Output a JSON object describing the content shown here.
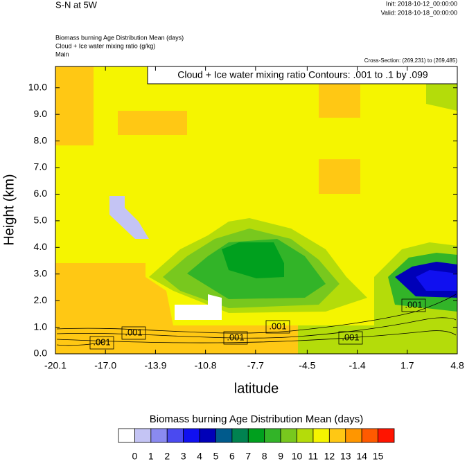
{
  "chart_data": {
    "type": "contour",
    "title": "S-N at 5W",
    "init": "Init: 2018-10-12_00:00:00",
    "valid": "Valid: 2018-10-18_00:00:00",
    "fields": [
      "Biomass burning Age Distribution Mean   (days)",
      "Cloud + Ice water mixing ratio   (g/kg)",
      "Main"
    ],
    "cross_section": "Cross-Section: (269,231) to (269,485)",
    "contour_note": "Cloud + Ice water mixing ratio Contours: .001 to .1 by .099",
    "xlabel": "latitude",
    "ylabel": "Height (km)",
    "xlim": [
      -20.1,
      4.8
    ],
    "xticks": [
      {
        "value": -20.1,
        "label": "-20.1"
      },
      {
        "value": -17.0,
        "label": "-17.0"
      },
      {
        "value": -13.9,
        "label": "-13.9"
      },
      {
        "value": -10.8,
        "label": "-10.8"
      },
      {
        "value": -7.7,
        "label": "-7.7"
      },
      {
        "value": -4.5,
        "label": "-4.5"
      },
      {
        "value": -1.4,
        "label": "-1.4"
      },
      {
        "value": 1.7,
        "label": "1.7"
      },
      {
        "value": 4.8,
        "label": "4.8"
      }
    ],
    "ylim": [
      0,
      10.8
    ],
    "yticks": [
      {
        "value": 0,
        "label": "0.0"
      },
      {
        "value": 1,
        "label": "1.0"
      },
      {
        "value": 2,
        "label": "2.0"
      },
      {
        "value": 3,
        "label": "3.0"
      },
      {
        "value": 4,
        "label": "4.0"
      },
      {
        "value": 5,
        "label": "5.0"
      },
      {
        "value": 6,
        "label": "6.0"
      },
      {
        "value": 7,
        "label": "7.0"
      },
      {
        "value": 8,
        "label": "8.0"
      },
      {
        "value": 9,
        "label": "9.0"
      },
      {
        "value": 10,
        "label": "10.0"
      }
    ],
    "contour_labels": [
      ".001",
      ".001",
      ".001",
      ".001",
      ".001",
      ".001"
    ],
    "colorbar": {
      "title": "Biomass burning Age Distribution Mean  (days)",
      "levels": [
        0,
        1,
        2,
        3,
        4,
        5,
        6,
        7,
        8,
        9,
        10,
        11,
        12,
        13,
        14,
        15
      ],
      "colors": [
        "#ffffff",
        "#c4c4f4",
        "#8a8af0",
        "#4a4af0",
        "#1010f0",
        "#0000b8",
        "#005a8c",
        "#008250",
        "#00a01e",
        "#32b428",
        "#78c81e",
        "#b4dc0a",
        "#f5f500",
        "#ffc814",
        "#ff9600",
        "#ff5a00",
        "#ff1400"
      ]
    }
  }
}
